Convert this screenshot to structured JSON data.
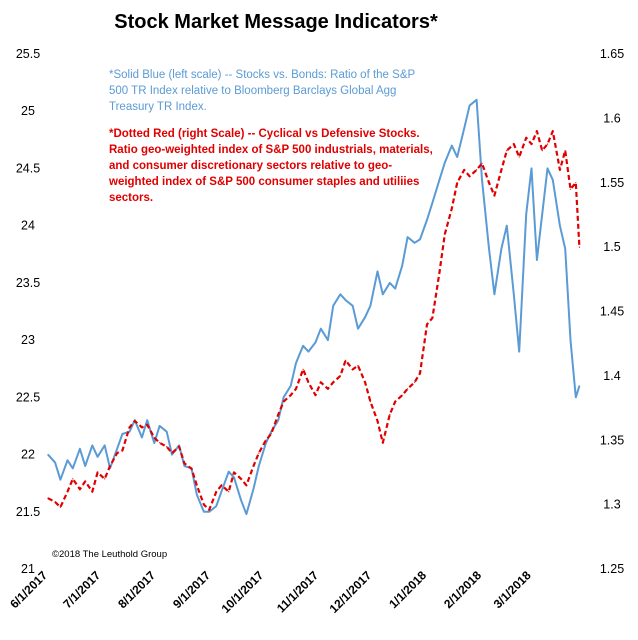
{
  "chart_data": {
    "type": "line",
    "title": "Stock Market Message Indicators*",
    "x_ticks": [
      "6/1/2017",
      "7/1/2017",
      "8/1/2017",
      "9/1/2017",
      "10/1/2017",
      "11/1/2017",
      "12/1/2017",
      "1/1/2018",
      "2/1/2018",
      "3/1/2018"
    ],
    "y_left": {
      "ylim": [
        21,
        25.5
      ],
      "ticks": [
        "21",
        "21.5",
        "22",
        "22.5",
        "23",
        "23.5",
        "24",
        "24.5",
        "25",
        "25.5"
      ]
    },
    "y_right": {
      "ylim": [
        1.25,
        1.65
      ],
      "ticks": [
        "1.25",
        "1.3",
        "1.35",
        "1.4",
        "1.45",
        "1.5",
        "1.55",
        "1.6",
        "1.65"
      ]
    },
    "annotations": {
      "blue": [
        "*Solid Blue (left scale) -- Stocks vs. Bonds: Ratio of the S&P",
        "500 TR Index relative to Bloomberg Barclays Global Agg",
        "Treasury TR Index."
      ],
      "red": [
        "*Dotted Red (right Scale) -- Cyclical vs Defensive Stocks.",
        "Ratio geo-weighted index of S&P 500 industrials, materials,",
        "and consumer discretionary sectors relative to geo-",
        "weighted index of S&P 500 consumer staples and utiliies",
        "sectors."
      ]
    },
    "copyright": "©2018 The Leuthold Group",
    "series": [
      {
        "axis": "left",
        "color": "#5b9bd5",
        "style": "solid",
        "points": [
          [
            "2017-06-01",
            22.0
          ],
          [
            "2017-06-05",
            21.93
          ],
          [
            "2017-06-08",
            21.78
          ],
          [
            "2017-06-12",
            21.95
          ],
          [
            "2017-06-15",
            21.88
          ],
          [
            "2017-06-19",
            22.05
          ],
          [
            "2017-06-22",
            21.9
          ],
          [
            "2017-06-26",
            22.08
          ],
          [
            "2017-06-29",
            21.98
          ],
          [
            "2017-07-03",
            22.08
          ],
          [
            "2017-07-06",
            21.88
          ],
          [
            "2017-07-10",
            22.05
          ],
          [
            "2017-07-13",
            22.18
          ],
          [
            "2017-07-17",
            22.2
          ],
          [
            "2017-07-20",
            22.3
          ],
          [
            "2017-07-24",
            22.15
          ],
          [
            "2017-07-27",
            22.3
          ],
          [
            "2017-07-31",
            22.1
          ],
          [
            "2017-08-03",
            22.25
          ],
          [
            "2017-08-07",
            22.2
          ],
          [
            "2017-08-10",
            22.0
          ],
          [
            "2017-08-14",
            22.08
          ],
          [
            "2017-08-17",
            21.9
          ],
          [
            "2017-08-21",
            21.88
          ],
          [
            "2017-08-24",
            21.65
          ],
          [
            "2017-08-28",
            21.5
          ],
          [
            "2017-08-31",
            21.5
          ],
          [
            "2017-09-04",
            21.55
          ],
          [
            "2017-09-07",
            21.68
          ],
          [
            "2017-09-11",
            21.85
          ],
          [
            "2017-09-14",
            21.8
          ],
          [
            "2017-09-18",
            21.6
          ],
          [
            "2017-09-21",
            21.48
          ],
          [
            "2017-09-25",
            21.7
          ],
          [
            "2017-09-28",
            21.9
          ],
          [
            "2017-10-02",
            22.1
          ],
          [
            "2017-10-05",
            22.2
          ],
          [
            "2017-10-09",
            22.3
          ],
          [
            "2017-10-12",
            22.5
          ],
          [
            "2017-10-16",
            22.6
          ],
          [
            "2017-10-19",
            22.8
          ],
          [
            "2017-10-23",
            22.95
          ],
          [
            "2017-10-26",
            22.9
          ],
          [
            "2017-10-30",
            22.98
          ],
          [
            "2017-11-02",
            23.1
          ],
          [
            "2017-11-06",
            23.0
          ],
          [
            "2017-11-09",
            23.3
          ],
          [
            "2017-11-13",
            23.4
          ],
          [
            "2017-11-16",
            23.35
          ],
          [
            "2017-11-20",
            23.3
          ],
          [
            "2017-11-23",
            23.1
          ],
          [
            "2017-11-27",
            23.2
          ],
          [
            "2017-11-30",
            23.3
          ],
          [
            "2017-12-04",
            23.6
          ],
          [
            "2017-12-07",
            23.4
          ],
          [
            "2017-12-11",
            23.5
          ],
          [
            "2017-12-14",
            23.45
          ],
          [
            "2017-12-18",
            23.65
          ],
          [
            "2017-12-21",
            23.9
          ],
          [
            "2017-12-25",
            23.85
          ],
          [
            "2017-12-28",
            23.88
          ],
          [
            "2018-01-01",
            24.05
          ],
          [
            "2018-01-04",
            24.2
          ],
          [
            "2018-01-08",
            24.4
          ],
          [
            "2018-01-11",
            24.55
          ],
          [
            "2018-01-15",
            24.7
          ],
          [
            "2018-01-18",
            24.6
          ],
          [
            "2018-01-22",
            24.85
          ],
          [
            "2018-01-25",
            25.05
          ],
          [
            "2018-01-29",
            25.1
          ],
          [
            "2018-02-01",
            24.4
          ],
          [
            "2018-02-05",
            23.8
          ],
          [
            "2018-02-08",
            23.4
          ],
          [
            "2018-02-12",
            23.8
          ],
          [
            "2018-02-15",
            24.0
          ],
          [
            "2018-02-19",
            23.4
          ],
          [
            "2018-02-22",
            22.9
          ],
          [
            "2018-02-26",
            24.1
          ],
          [
            "2018-03-01",
            24.5
          ],
          [
            "2018-03-04",
            23.7
          ],
          [
            "2018-03-07",
            24.1
          ],
          [
            "2018-03-10",
            24.5
          ],
          [
            "2018-03-13",
            24.4
          ],
          [
            "2018-03-17",
            24.0
          ],
          [
            "2018-03-20",
            23.8
          ],
          [
            "2018-03-23",
            23.0
          ],
          [
            "2018-03-26",
            22.5
          ],
          [
            "2018-03-28",
            22.6
          ]
        ]
      },
      {
        "axis": "right",
        "color": "#e00000",
        "style": "dotted",
        "points": [
          [
            "2017-06-01",
            1.305
          ],
          [
            "2017-06-05",
            1.302
          ],
          [
            "2017-06-08",
            1.298
          ],
          [
            "2017-06-12",
            1.31
          ],
          [
            "2017-06-15",
            1.32
          ],
          [
            "2017-06-19",
            1.312
          ],
          [
            "2017-06-22",
            1.318
          ],
          [
            "2017-06-26",
            1.31
          ],
          [
            "2017-06-29",
            1.325
          ],
          [
            "2017-07-03",
            1.32
          ],
          [
            "2017-07-06",
            1.33
          ],
          [
            "2017-07-10",
            1.34
          ],
          [
            "2017-07-13",
            1.342
          ],
          [
            "2017-07-17",
            1.36
          ],
          [
            "2017-07-20",
            1.365
          ],
          [
            "2017-07-24",
            1.36
          ],
          [
            "2017-07-27",
            1.362
          ],
          [
            "2017-07-31",
            1.352
          ],
          [
            "2017-08-03",
            1.348
          ],
          [
            "2017-08-07",
            1.345
          ],
          [
            "2017-08-10",
            1.34
          ],
          [
            "2017-08-14",
            1.345
          ],
          [
            "2017-08-17",
            1.332
          ],
          [
            "2017-08-21",
            1.328
          ],
          [
            "2017-08-24",
            1.315
          ],
          [
            "2017-08-28",
            1.3
          ],
          [
            "2017-08-31",
            1.296
          ],
          [
            "2017-09-04",
            1.31
          ],
          [
            "2017-09-07",
            1.315
          ],
          [
            "2017-09-11",
            1.31
          ],
          [
            "2017-09-14",
            1.325
          ],
          [
            "2017-09-18",
            1.32
          ],
          [
            "2017-09-21",
            1.315
          ],
          [
            "2017-09-25",
            1.33
          ],
          [
            "2017-09-28",
            1.34
          ],
          [
            "2017-10-02",
            1.35
          ],
          [
            "2017-10-05",
            1.355
          ],
          [
            "2017-10-09",
            1.37
          ],
          [
            "2017-10-12",
            1.38
          ],
          [
            "2017-10-16",
            1.385
          ],
          [
            "2017-10-19",
            1.39
          ],
          [
            "2017-10-23",
            1.405
          ],
          [
            "2017-10-26",
            1.395
          ],
          [
            "2017-10-30",
            1.385
          ],
          [
            "2017-11-02",
            1.395
          ],
          [
            "2017-11-06",
            1.39
          ],
          [
            "2017-11-09",
            1.395
          ],
          [
            "2017-11-13",
            1.4
          ],
          [
            "2017-11-16",
            1.412
          ],
          [
            "2017-11-20",
            1.405
          ],
          [
            "2017-11-23",
            1.408
          ],
          [
            "2017-11-27",
            1.395
          ],
          [
            "2017-11-30",
            1.38
          ],
          [
            "2017-12-04",
            1.365
          ],
          [
            "2017-12-07",
            1.348
          ],
          [
            "2017-12-11",
            1.37
          ],
          [
            "2017-12-14",
            1.38
          ],
          [
            "2017-12-18",
            1.385
          ],
          [
            "2017-12-21",
            1.39
          ],
          [
            "2017-12-25",
            1.395
          ],
          [
            "2017-12-28",
            1.402
          ],
          [
            "2018-01-01",
            1.44
          ],
          [
            "2018-01-04",
            1.445
          ],
          [
            "2018-01-08",
            1.48
          ],
          [
            "2018-01-11",
            1.51
          ],
          [
            "2018-01-15",
            1.53
          ],
          [
            "2018-01-18",
            1.55
          ],
          [
            "2018-01-22",
            1.56
          ],
          [
            "2018-01-25",
            1.555
          ],
          [
            "2018-01-29",
            1.56
          ],
          [
            "2018-02-01",
            1.565
          ],
          [
            "2018-02-05",
            1.55
          ],
          [
            "2018-02-08",
            1.54
          ],
          [
            "2018-02-12",
            1.56
          ],
          [
            "2018-02-15",
            1.575
          ],
          [
            "2018-02-19",
            1.58
          ],
          [
            "2018-02-22",
            1.57
          ],
          [
            "2018-02-26",
            1.585
          ],
          [
            "2018-03-01",
            1.58
          ],
          [
            "2018-03-04",
            1.59
          ],
          [
            "2018-03-07",
            1.575
          ],
          [
            "2018-03-10",
            1.58
          ],
          [
            "2018-03-13",
            1.59
          ],
          [
            "2018-03-17",
            1.56
          ],
          [
            "2018-03-20",
            1.575
          ],
          [
            "2018-03-23",
            1.545
          ],
          [
            "2018-03-26",
            1.55
          ],
          [
            "2018-03-28",
            1.5
          ]
        ]
      }
    ]
  }
}
